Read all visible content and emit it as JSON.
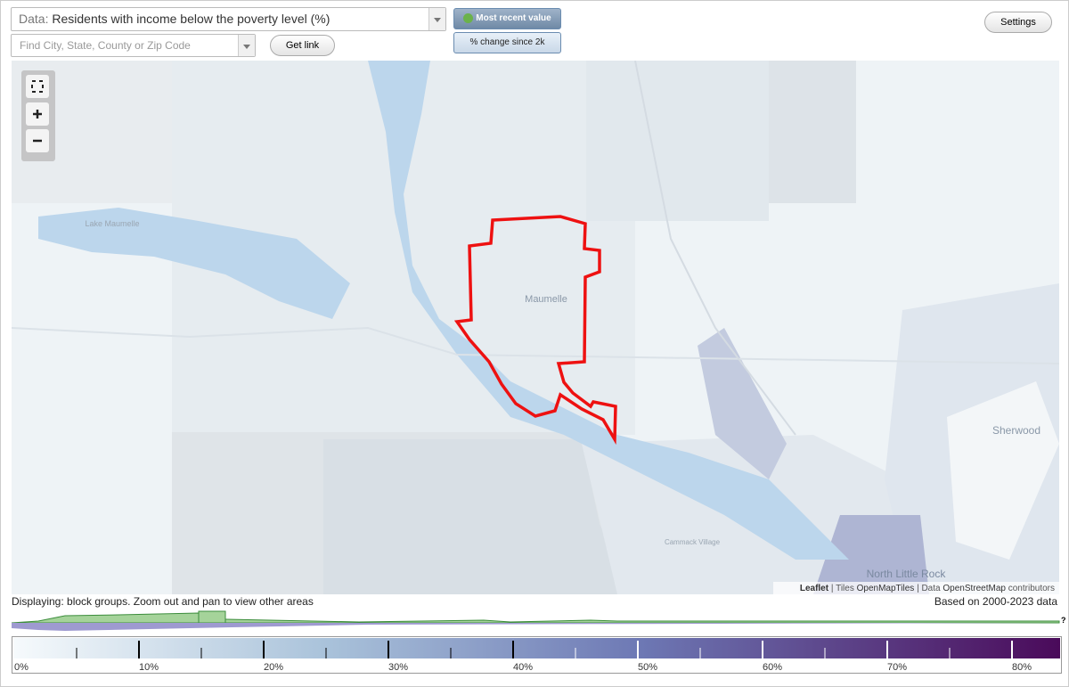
{
  "toolbar": {
    "data_label": "Data:",
    "data_value": "Residents with income below the poverty level (%)",
    "search_placeholder": "Find City, State, County or Zip Code",
    "get_link": "Get link",
    "most_recent": "Most recent value",
    "change": "% change since 2k",
    "settings": "Settings"
  },
  "map": {
    "labels": [
      "Lake Maumelle",
      "Maumelle",
      "Sherwood",
      "Cammack Village",
      "North Little Rock"
    ],
    "attribution": {
      "leaflet": "Leaflet",
      "sep1": "|",
      "tiles": "Tiles",
      "openmaptiles": "OpenMapTiles",
      "sep2": "|",
      "data": "Data",
      "osm": "OpenStreetMap",
      "contributors": "contributors"
    }
  },
  "footer": {
    "displaying": "Displaying: block groups. Zoom out and pan to view other areas",
    "based_on": "Based on 2000-2023 data",
    "unknown": "?"
  },
  "legend": {
    "ticks": [
      "0%",
      "10%",
      "20%",
      "30%",
      "40%",
      "50%",
      "60%",
      "70%",
      "80%"
    ]
  }
}
